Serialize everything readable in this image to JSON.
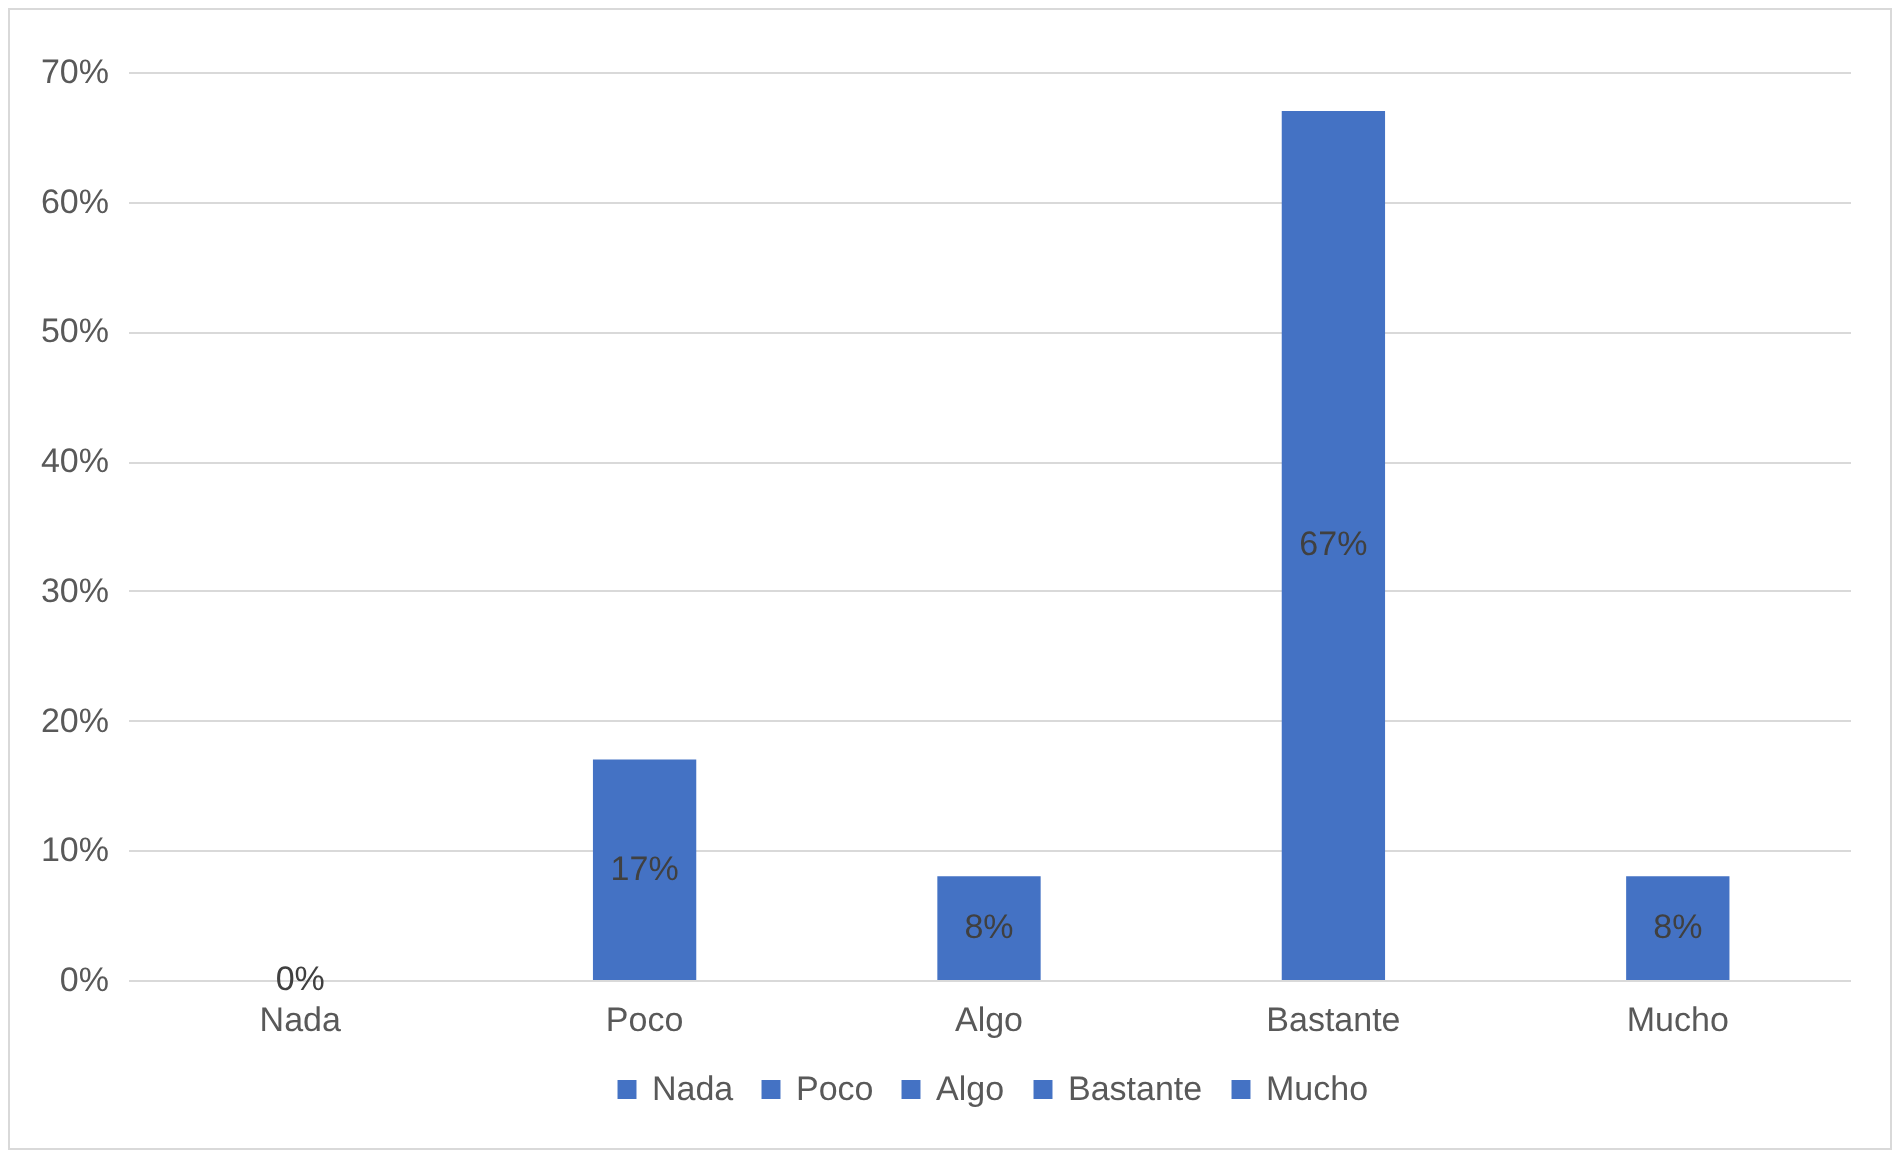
{
  "chart_data": {
    "type": "bar",
    "categories": [
      "Nada",
      "Poco",
      "Algo",
      "Bastante",
      "Mucho"
    ],
    "series": [
      {
        "name": "Nada",
        "color": "#4472c4",
        "values": [
          0,
          null,
          null,
          null,
          null
        ],
        "value_labels": [
          "0%",
          null,
          null,
          null,
          null
        ]
      },
      {
        "name": "Poco",
        "color": "#4472c4",
        "values": [
          null,
          17,
          null,
          null,
          null
        ],
        "value_labels": [
          null,
          "17%",
          null,
          null,
          null
        ]
      },
      {
        "name": "Algo",
        "color": "#4472c4",
        "values": [
          null,
          null,
          8,
          null,
          null
        ],
        "value_labels": [
          null,
          null,
          "8%",
          null,
          null
        ]
      },
      {
        "name": "Bastante",
        "color": "#4472c4",
        "values": [
          null,
          null,
          null,
          67,
          null
        ],
        "value_labels": [
          null,
          null,
          null,
          "67%",
          null
        ]
      },
      {
        "name": "Mucho",
        "color": "#4472c4",
        "values": [
          null,
          null,
          null,
          null,
          8
        ],
        "value_labels": [
          null,
          null,
          null,
          null,
          "8%"
        ]
      }
    ],
    "ylim": [
      0,
      70
    ],
    "yticks": [
      {
        "value": 0,
        "label": "0%"
      },
      {
        "value": 10,
        "label": "10%"
      },
      {
        "value": 20,
        "label": "20%"
      },
      {
        "value": 30,
        "label": "30%"
      },
      {
        "value": 40,
        "label": "40%"
      },
      {
        "value": 50,
        "label": "50%"
      },
      {
        "value": 60,
        "label": "60%"
      },
      {
        "value": 70,
        "label": "70%"
      }
    ],
    "grid": "y",
    "legend": "bottom"
  }
}
